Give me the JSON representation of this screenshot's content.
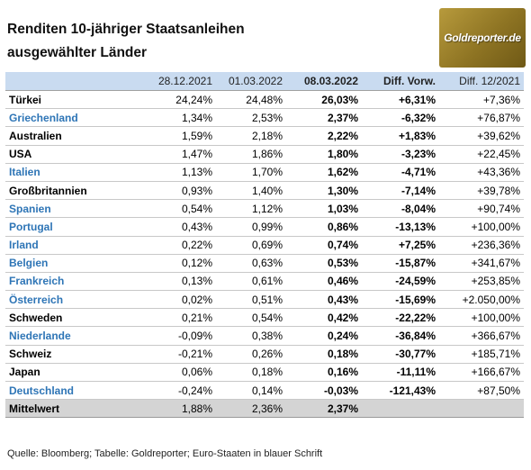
{
  "title_line1": "Renditen 10-jähriger Staatsanleihen",
  "title_line2": "ausgewählter Länder",
  "logo_text": "Goldreporter.de",
  "headers": [
    "",
    "28.12.2021",
    "01.03.2022",
    "08.03.2022",
    "Diff. Vorw.",
    "Diff. 12/2021"
  ],
  "rows": [
    {
      "country": "Türkei",
      "euro": false,
      "v1": "24,24%",
      "v2": "24,48%",
      "v3": "26,03%",
      "d1": "+6,31%",
      "d2": "+7,36%"
    },
    {
      "country": "Griechenland",
      "euro": true,
      "v1": "1,34%",
      "v2": "2,53%",
      "v3": "2,37%",
      "d1": "-6,32%",
      "d2": "+76,87%"
    },
    {
      "country": "Australien",
      "euro": false,
      "v1": "1,59%",
      "v2": "2,18%",
      "v3": "2,22%",
      "d1": "+1,83%",
      "d2": "+39,62%"
    },
    {
      "country": "USA",
      "euro": false,
      "v1": "1,47%",
      "v2": "1,86%",
      "v3": "1,80%",
      "d1": "-3,23%",
      "d2": "+22,45%"
    },
    {
      "country": "Italien",
      "euro": true,
      "v1": "1,13%",
      "v2": "1,70%",
      "v3": "1,62%",
      "d1": "-4,71%",
      "d2": "+43,36%"
    },
    {
      "country": "Großbritannien",
      "euro": false,
      "v1": "0,93%",
      "v2": "1,40%",
      "v3": "1,30%",
      "d1": "-7,14%",
      "d2": "+39,78%"
    },
    {
      "country": "Spanien",
      "euro": true,
      "v1": "0,54%",
      "v2": "1,12%",
      "v3": "1,03%",
      "d1": "-8,04%",
      "d2": "+90,74%"
    },
    {
      "country": "Portugal",
      "euro": true,
      "v1": "0,43%",
      "v2": "0,99%",
      "v3": "0,86%",
      "d1": "-13,13%",
      "d2": "+100,00%"
    },
    {
      "country": "Irland",
      "euro": true,
      "v1": "0,22%",
      "v2": "0,69%",
      "v3": "0,74%",
      "d1": "+7,25%",
      "d2": "+236,36%"
    },
    {
      "country": "Belgien",
      "euro": true,
      "v1": "0,12%",
      "v2": "0,63%",
      "v3": "0,53%",
      "d1": "-15,87%",
      "d2": "+341,67%"
    },
    {
      "country": "Frankreich",
      "euro": true,
      "v1": "0,13%",
      "v2": "0,61%",
      "v3": "0,46%",
      "d1": "-24,59%",
      "d2": "+253,85%"
    },
    {
      "country": "Österreich",
      "euro": true,
      "v1": "0,02%",
      "v2": "0,51%",
      "v3": "0,43%",
      "d1": "-15,69%",
      "d2": "+2.050,00%"
    },
    {
      "country": "Schweden",
      "euro": false,
      "v1": "0,21%",
      "v2": "0,54%",
      "v3": "0,42%",
      "d1": "-22,22%",
      "d2": "+100,00%"
    },
    {
      "country": "Niederlande",
      "euro": true,
      "v1": "-0,09%",
      "v2": "0,38%",
      "v3": "0,24%",
      "d1": "-36,84%",
      "d2": "+366,67%"
    },
    {
      "country": "Schweiz",
      "euro": false,
      "v1": "-0,21%",
      "v2": "0,26%",
      "v3": "0,18%",
      "d1": "-30,77%",
      "d2": "+185,71%"
    },
    {
      "country": "Japan",
      "euro": false,
      "v1": "0,06%",
      "v2": "0,18%",
      "v3": "0,16%",
      "d1": "-11,11%",
      "d2": "+166,67%"
    },
    {
      "country": "Deutschland",
      "euro": true,
      "v1": "-0,24%",
      "v2": "0,14%",
      "v3": "-0,03%",
      "d1": "-121,43%",
      "d2": "+87,50%"
    }
  ],
  "average": {
    "label": "Mittelwert",
    "v1": "1,88%",
    "v2": "2,36%",
    "v3": "2,37%"
  },
  "colors": {
    "euro_blue": "#2e75b6",
    "header_bg": "#c9dbf0",
    "avg_bg": "#d4d4d4"
  },
  "source": "Quelle: Bloomberg; Tabelle: Goldreporter; Euro-Staaten in blauer Schrift"
}
